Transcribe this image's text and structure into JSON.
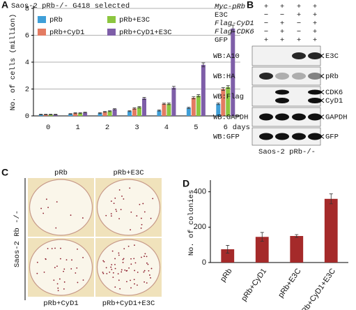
{
  "chart_data": [
    {
      "type": "bar",
      "panel": "A",
      "title": "Saos-2 pRb-/- G418 selected",
      "y_label": "No. of cells (million)",
      "x_label": "days",
      "categories": [
        "0",
        "1",
        "2",
        "3",
        "4",
        "5",
        "6"
      ],
      "series": [
        {
          "name": "pRb",
          "color": "#3f9fd8",
          "values": [
            0.1,
            0.15,
            0.2,
            0.35,
            0.4,
            0.6,
            0.9
          ],
          "errors": [
            0.02,
            0.02,
            0.03,
            0.03,
            0.04,
            0.05,
            0.06
          ]
        },
        {
          "name": "pRb+CyD1",
          "color": "#e37b62",
          "values": [
            0.1,
            0.2,
            0.3,
            0.55,
            0.9,
            1.35,
            2.0
          ],
          "errors": [
            0.02,
            0.03,
            0.03,
            0.05,
            0.05,
            0.08,
            0.1
          ]
        },
        {
          "name": "pRb+E3C",
          "color": "#8cc63f",
          "values": [
            0.1,
            0.2,
            0.35,
            0.65,
            0.9,
            1.5,
            2.15
          ],
          "errors": [
            0.02,
            0.03,
            0.03,
            0.05,
            0.06,
            0.08,
            0.1
          ]
        },
        {
          "name": "pRb+CyD1+E3C",
          "color": "#7e5ea8",
          "values": [
            0.1,
            0.25,
            0.5,
            1.3,
            2.1,
            3.8,
            6.5
          ],
          "errors": [
            0.02,
            0.03,
            0.04,
            0.08,
            0.1,
            0.15,
            0.25
          ]
        }
      ],
      "ylim": [
        0,
        8
      ],
      "yticks": [
        0,
        2,
        4,
        6,
        8
      ],
      "grid": true,
      "legend": "top-left"
    },
    {
      "type": "bar",
      "panel": "D",
      "y_label": "No. of colonies",
      "categories": [
        "pRb",
        "pRb+CyD1",
        "pRb+E3C",
        "pRb+CyD1+E3C"
      ],
      "values": [
        75,
        145,
        150,
        360
      ],
      "errors": [
        22,
        25,
        8,
        28
      ],
      "color": "#a52a2a",
      "ylim": [
        0,
        450
      ],
      "yticks": [
        0,
        200,
        400
      ],
      "grid": false
    }
  ],
  "blot": {
    "panel": "B",
    "conditions": [
      {
        "label": "Myc-pRb",
        "signs": [
          "+",
          "+",
          "+",
          "+"
        ]
      },
      {
        "label": "E3C",
        "signs": [
          "−",
          "−",
          "+",
          "+"
        ]
      },
      {
        "label": "Flag-CyD1",
        "signs": [
          "−",
          "+",
          "−",
          "+"
        ]
      },
      {
        "label": "Flag-CDK6",
        "signs": [
          "−",
          "+",
          "−",
          "+"
        ]
      },
      {
        "label": "GFP",
        "signs": [
          "+",
          "+",
          "+",
          "+"
        ]
      }
    ],
    "rows": [
      {
        "antibody": "WB:A10",
        "targets": [
          "E3C"
        ]
      },
      {
        "antibody": "WB:HA",
        "targets": [
          "pRb"
        ]
      },
      {
        "antibody": "WB:Flag",
        "targets": [
          "CDK6",
          "CyD1"
        ]
      },
      {
        "antibody": "WB:GAPDH",
        "targets": [
          "GAPDH"
        ]
      },
      {
        "antibody": "WB:GFP",
        "targets": [
          "GFP"
        ]
      }
    ],
    "cell_line": "Saos-2  pRb-/-"
  },
  "colony": {
    "panel": "C",
    "side_label": "Saos-2 Rb -/-",
    "dishes": [
      "pRb",
      "pRb+E3C",
      "pRb+CyD1",
      "pRb+CyD1+E3C"
    ]
  }
}
